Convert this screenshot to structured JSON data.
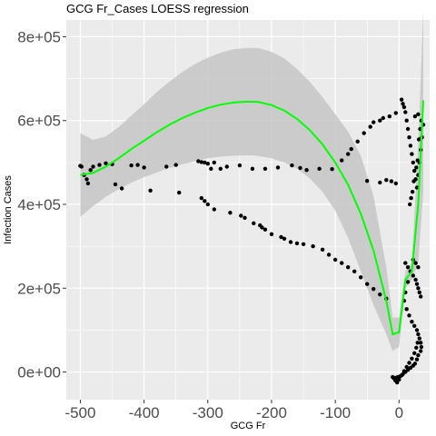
{
  "chart_data": {
    "type": "scatter",
    "title": "GCG Fr_Cases LOESS regression",
    "xlabel": "GCG Fr",
    "ylabel": "Infection Cases",
    "xlim": [
      -522,
      48
    ],
    "ylim": [
      -66000,
      840000
    ],
    "x_ticks": [
      -500,
      -400,
      -300,
      -200,
      -100,
      0
    ],
    "x_tick_labels": [
      "-500",
      "-400",
      "-300",
      "-200",
      "-100",
      "0"
    ],
    "y_ticks": [
      0,
      200000,
      400000,
      600000,
      800000
    ],
    "y_tick_labels": [
      "0e+00",
      "2e+05",
      "4e+05",
      "6e+05",
      "8e+05"
    ],
    "grid": true,
    "background": "#ebebeb",
    "grid_color": "#ffffff",
    "point_color": "#000000",
    "line_color": "#00ff00",
    "band_color": "#c6c6c6",
    "points": [
      [
        -500,
        492000
      ],
      [
        -498,
        490000
      ],
      [
        -494,
        470000
      ],
      [
        -490,
        460000
      ],
      [
        -488,
        450000
      ],
      [
        -484,
        482000
      ],
      [
        -480,
        490000
      ],
      [
        -470,
        494000
      ],
      [
        -460,
        498000
      ],
      [
        -450,
        496000
      ],
      [
        -445,
        448000
      ],
      [
        -435,
        438000
      ],
      [
        -420,
        493000
      ],
      [
        -410,
        494000
      ],
      [
        -400,
        488000
      ],
      [
        -390,
        433000
      ],
      [
        -365,
        490000
      ],
      [
        -350,
        494000
      ],
      [
        -345,
        428000
      ],
      [
        -315,
        503000
      ],
      [
        -310,
        501000
      ],
      [
        -305,
        500000
      ],
      [
        -300,
        497000
      ],
      [
        -295,
        485000
      ],
      [
        -290,
        500000
      ],
      [
        -280,
        485000
      ],
      [
        -270,
        490000
      ],
      [
        -250,
        493000
      ],
      [
        -230,
        485000
      ],
      [
        -210,
        485000
      ],
      [
        -190,
        488000
      ],
      [
        -168,
        493000
      ],
      [
        -155,
        487000
      ],
      [
        -145,
        482000
      ],
      [
        -125,
        485000
      ],
      [
        -105,
        484000
      ],
      [
        -90,
        505000
      ],
      [
        -80,
        520000
      ],
      [
        -75,
        532000
      ],
      [
        -65,
        550000
      ],
      [
        -55,
        570000
      ],
      [
        -45,
        585000
      ],
      [
        -40,
        596000
      ],
      [
        -30,
        600000
      ],
      [
        -25,
        606000
      ],
      [
        -15,
        610000
      ],
      [
        -5,
        618000
      ],
      [
        -310,
        415000
      ],
      [
        -305,
        408000
      ],
      [
        -300,
        400000
      ],
      [
        -290,
        388000
      ],
      [
        -265,
        380000
      ],
      [
        -248,
        373000
      ],
      [
        -242,
        368000
      ],
      [
        -228,
        355000
      ],
      [
        -218,
        350000
      ],
      [
        -215,
        345000
      ],
      [
        -210,
        340000
      ],
      [
        -200,
        329000
      ],
      [
        -185,
        322000
      ],
      [
        -180,
        318000
      ],
      [
        -170,
        310000
      ],
      [
        -160,
        307000
      ],
      [
        -150,
        305000
      ],
      [
        -135,
        300000
      ],
      [
        -120,
        292000
      ],
      [
        -110,
        280000
      ],
      [
        -100,
        268000
      ],
      [
        -90,
        260000
      ],
      [
        -80,
        250000
      ],
      [
        -70,
        240000
      ],
      [
        -60,
        226000
      ],
      [
        -50,
        210000
      ],
      [
        -40,
        198000
      ],
      [
        -30,
        185000
      ],
      [
        -20,
        175000
      ],
      [
        -50,
        456000
      ],
      [
        -30,
        452000
      ],
      [
        -20,
        458000
      ],
      [
        -12,
        455000
      ],
      [
        -5,
        450000
      ],
      [
        4,
        650000
      ],
      [
        6,
        640000
      ],
      [
        8,
        632000
      ],
      [
        10,
        620000
      ],
      [
        12,
        600000
      ],
      [
        14,
        580000
      ],
      [
        16,
        560000
      ],
      [
        18,
        540000
      ],
      [
        20,
        520000
      ],
      [
        22,
        500000
      ],
      [
        24,
        480000
      ],
      [
        26,
        460000
      ],
      [
        28,
        440000
      ],
      [
        30,
        470000
      ],
      [
        32,
        500000
      ],
      [
        34,
        530000
      ],
      [
        36,
        560000
      ],
      [
        38,
        590000
      ],
      [
        25,
        610000
      ],
      [
        30,
        615000
      ],
      [
        35,
        600000
      ],
      [
        33,
        580000
      ],
      [
        31,
        555000
      ],
      [
        29,
        505000
      ],
      [
        27,
        488000
      ],
      [
        23,
        455000
      ],
      [
        21,
        430000
      ],
      [
        19,
        415000
      ],
      [
        17,
        400000
      ],
      [
        10,
        260000
      ],
      [
        14,
        250000
      ],
      [
        18,
        240000
      ],
      [
        22,
        230000
      ],
      [
        26,
        220000
      ],
      [
        28,
        210000
      ],
      [
        30,
        200000
      ],
      [
        32,
        190000
      ],
      [
        34,
        180000
      ],
      [
        30,
        250000
      ],
      [
        26,
        260000
      ],
      [
        22,
        268000
      ],
      [
        18,
        240000
      ],
      [
        14,
        215000
      ],
      [
        10,
        190000
      ],
      [
        8,
        170000
      ],
      [
        12,
        150000
      ],
      [
        16,
        135000
      ],
      [
        20,
        120000
      ],
      [
        24,
        110000
      ],
      [
        28,
        100000
      ],
      [
        30,
        90000
      ],
      [
        32,
        80000
      ],
      [
        34,
        70000
      ],
      [
        35,
        60000
      ],
      [
        34,
        50000
      ],
      [
        30,
        40000
      ],
      [
        28,
        30000
      ],
      [
        25,
        20000
      ],
      [
        22,
        15000
      ],
      [
        18,
        10000
      ],
      [
        14,
        5000
      ],
      [
        10,
        0
      ],
      [
        6,
        -5000
      ],
      [
        2,
        -10000
      ],
      [
        -2,
        -12000
      ],
      [
        -5,
        -14000
      ],
      [
        -8,
        -15000
      ],
      [
        -10,
        -12000
      ],
      [
        -6,
        -20000
      ],
      [
        -3,
        -25000
      ],
      [
        0,
        -18000
      ],
      [
        4,
        -8000
      ],
      [
        8,
        2000
      ],
      [
        12,
        12000
      ],
      [
        16,
        22000
      ],
      [
        20,
        32000
      ],
      [
        24,
        45000
      ],
      [
        27,
        58000
      ],
      [
        29,
        70000
      ]
    ],
    "loess": {
      "x": [
        -500,
        -480,
        -460,
        -440,
        -420,
        -400,
        -380,
        -360,
        -340,
        -320,
        -300,
        -280,
        -260,
        -240,
        -230,
        -220,
        -200,
        -180,
        -160,
        -140,
        -120,
        -100,
        -80,
        -60,
        -40,
        -20,
        -10,
        0,
        10,
        20,
        30,
        38
      ],
      "y": [
        470000,
        475000,
        490000,
        510000,
        532000,
        552000,
        572000,
        590000,
        606000,
        619000,
        630000,
        638000,
        643000,
        645000,
        645000,
        644000,
        637000,
        624000,
        604000,
        577000,
        543000,
        500000,
        447000,
        378000,
        290000,
        170000,
        90000,
        95000,
        220000,
        240000,
        400000,
        648000
      ],
      "lower": [
        370000,
        396000,
        418000,
        436000,
        452000,
        465000,
        476000,
        487000,
        496000,
        503000,
        510000,
        514000,
        516000,
        517000,
        517000,
        515000,
        510000,
        500000,
        485000,
        462000,
        430000,
        385000,
        320000,
        240000,
        160000,
        90000,
        50000,
        60000,
        200000,
        220000,
        260000,
        430000
      ],
      "upper": [
        570000,
        554000,
        562000,
        584000,
        612000,
        639000,
        668000,
        693000,
        716000,
        735000,
        750000,
        762000,
        770000,
        773000,
        773000,
        773000,
        764000,
        748000,
        723000,
        692000,
        656000,
        615000,
        574000,
        516000,
        420000,
        250000,
        130000,
        130000,
        240000,
        260000,
        540000,
        866000
      ]
    }
  }
}
